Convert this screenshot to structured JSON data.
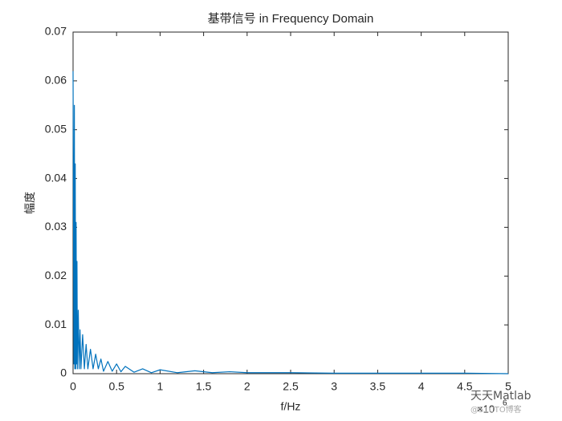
{
  "chart_data": {
    "type": "line",
    "title": "基带信号 in Frequency Domain",
    "x_label": "f/Hz",
    "y_label": "幅度",
    "x_multiplier": "×10",
    "x_multiplier_exponent": "6",
    "watermark": "天天Matlab",
    "watermark_sub": "@51CTO博客",
    "xlim": [
      0,
      5
    ],
    "xticks": [
      0,
      0.5,
      1,
      1.5,
      2,
      2.5,
      3,
      3.5,
      4,
      4.5,
      5
    ],
    "ylim": [
      0,
      0.07
    ],
    "yticks": [
      0,
      0.01,
      0.02,
      0.03,
      0.04,
      0.05,
      0.06,
      0.07
    ],
    "series": [
      {
        "color": "#0072bd",
        "x": [
          0,
          0.01,
          0.015,
          0.02,
          0.025,
          0.03,
          0.035,
          0.04,
          0.045,
          0.05,
          0.06,
          0.07,
          0.08,
          0.09,
          0.11,
          0.13,
          0.15,
          0.17,
          0.2,
          0.23,
          0.26,
          0.29,
          0.32,
          0.35,
          0.4,
          0.45,
          0.5,
          0.55,
          0.6,
          0.7,
          0.8,
          0.9,
          1.0,
          1.2,
          1.4,
          1.6,
          1.8,
          2.0,
          2.5,
          3.0,
          3.5,
          4.0,
          4.5,
          5.0
        ],
        "values": [
          0.062,
          0.002,
          0.055,
          0.001,
          0.043,
          0.001,
          0.031,
          0.002,
          0.023,
          0.001,
          0.013,
          0.001,
          0.009,
          0.001,
          0.008,
          0.001,
          0.006,
          0.001,
          0.005,
          0.001,
          0.004,
          0.001,
          0.003,
          0.0005,
          0.0025,
          0.0005,
          0.002,
          0.0004,
          0.0015,
          0.0003,
          0.001,
          0.0002,
          0.0008,
          0.0002,
          0.0006,
          0.0002,
          0.0004,
          0.0002,
          0.0002,
          0.0001,
          0.0001,
          0.0001,
          0.0001,
          0
        ]
      }
    ]
  }
}
